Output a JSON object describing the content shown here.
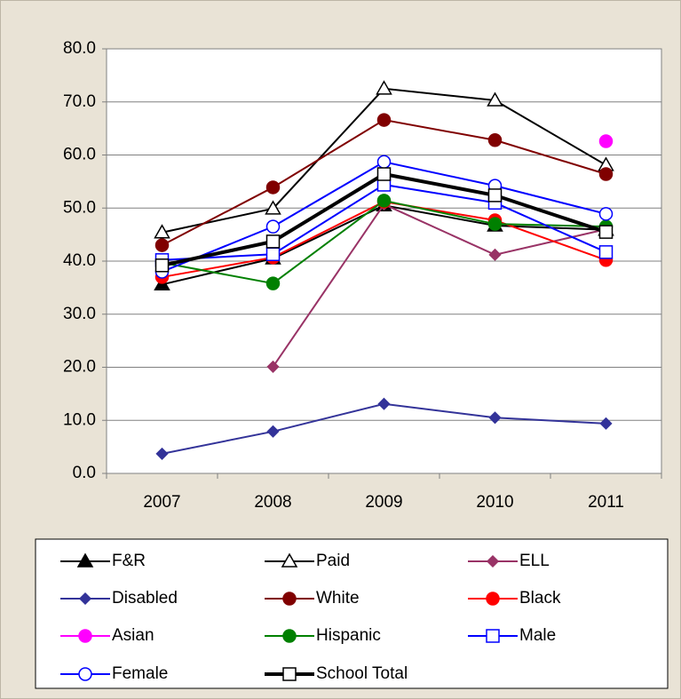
{
  "chart_data": {
    "type": "line",
    "categories": [
      "2007",
      "2008",
      "2009",
      "2010",
      "2011"
    ],
    "ylim": [
      0,
      80
    ],
    "yticks": [
      {
        "value": 0,
        "label": "0.0"
      },
      {
        "value": 10,
        "label": "10.0"
      },
      {
        "value": 20,
        "label": "20.0"
      },
      {
        "value": 30,
        "label": "30.0"
      },
      {
        "value": 40,
        "label": "40.0"
      },
      {
        "value": 50,
        "label": "50.0"
      },
      {
        "value": 60,
        "label": "60.0"
      },
      {
        "value": 70,
        "label": "70.0"
      },
      {
        "value": 80,
        "label": "80.0"
      }
    ],
    "grid": true,
    "legend": "bottom",
    "series": [
      {
        "name": "F&R",
        "color": "#000000",
        "marker": "triangle",
        "values": [
          35.6,
          40.5,
          50.5,
          46.7,
          45.9
        ]
      },
      {
        "name": "Paid",
        "color": "#000000",
        "marker": "triangle-open",
        "values": [
          45.4,
          49.9,
          72.5,
          70.3,
          58.1
        ]
      },
      {
        "name": "ELL",
        "color": "#993366",
        "marker": "diamond",
        "values": [
          null,
          20.1,
          50.7,
          41.2,
          46.0
        ]
      },
      {
        "name": "Disabled",
        "color": "#333399",
        "marker": "diamond",
        "values": [
          3.7,
          7.9,
          13.1,
          10.5,
          9.4
        ]
      },
      {
        "name": "White",
        "color": "#800000",
        "marker": "circle",
        "values": [
          43.0,
          53.9,
          66.6,
          62.8,
          56.4
        ]
      },
      {
        "name": "Black",
        "color": "#ff0000",
        "marker": "circle",
        "values": [
          37.0,
          40.7,
          51.2,
          47.7,
          40.2
        ]
      },
      {
        "name": "Asian",
        "color": "#ff00ff",
        "marker": "circle",
        "values": [
          null,
          null,
          null,
          null,
          62.6
        ]
      },
      {
        "name": "Hispanic",
        "color": "#008000",
        "marker": "circle",
        "values": [
          39.7,
          35.8,
          51.4,
          47.0,
          46.5
        ]
      },
      {
        "name": "Male",
        "color": "#0000ff",
        "marker": "square-open",
        "values": [
          40.2,
          41.3,
          54.4,
          51.0,
          41.7
        ]
      },
      {
        "name": "Female",
        "color": "#0000ff",
        "marker": "circle-open",
        "values": [
          38.0,
          46.5,
          58.7,
          54.2,
          48.9
        ]
      },
      {
        "name": "School Total",
        "color": "#000000",
        "marker": "square-open",
        "bold": true,
        "values": [
          39.2,
          43.7,
          56.4,
          52.4,
          45.5
        ]
      }
    ]
  }
}
